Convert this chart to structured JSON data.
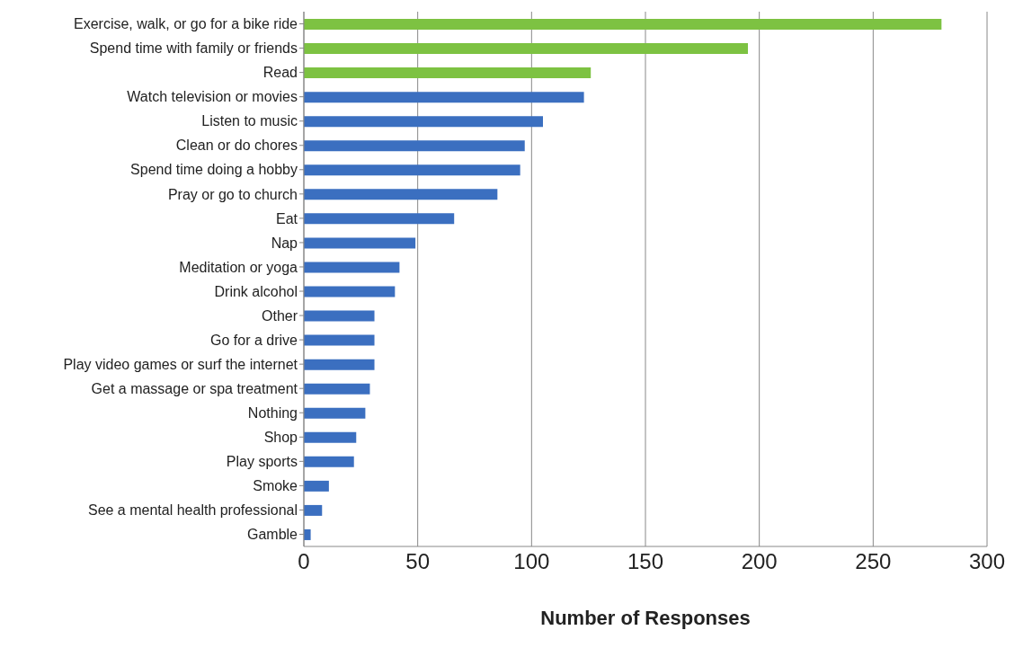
{
  "chart_data": {
    "type": "bar",
    "orientation": "horizontal",
    "xlabel": "Number of Responses",
    "categories": [
      "Exercise, walk, or go for a bike ride",
      "Spend time with family or friends",
      "Read",
      "Watch television or movies",
      "Listen to music",
      "Clean or do chores",
      "Spend time doing a hobby",
      "Pray or go to church",
      "Eat",
      "Nap",
      "Meditation or yoga",
      "Drink alcohol",
      "Other",
      "Go for a drive",
      "Play video games or surf the internet",
      "Get a massage or spa treatment",
      "Nothing",
      "Shop",
      "Play sports",
      "Smoke",
      "See a mental health professional",
      "Gamble"
    ],
    "values": [
      280,
      195,
      126,
      123,
      105,
      97,
      95,
      85,
      66,
      49,
      42,
      40,
      31,
      31,
      31,
      29,
      27,
      23,
      22,
      11,
      8,
      3
    ],
    "colors": [
      "#7dc242",
      "#7dc242",
      "#7dc242",
      "#3b6fc0",
      "#3b6fc0",
      "#3b6fc0",
      "#3b6fc0",
      "#3b6fc0",
      "#3b6fc0",
      "#3b6fc0",
      "#3b6fc0",
      "#3b6fc0",
      "#3b6fc0",
      "#3b6fc0",
      "#3b6fc0",
      "#3b6fc0",
      "#3b6fc0",
      "#3b6fc0",
      "#3b6fc0",
      "#3b6fc0",
      "#3b6fc0",
      "#3b6fc0"
    ],
    "xlim": [
      0,
      300
    ],
    "xticks": [
      0,
      50,
      100,
      150,
      200,
      250,
      300
    ],
    "grid": "x"
  }
}
